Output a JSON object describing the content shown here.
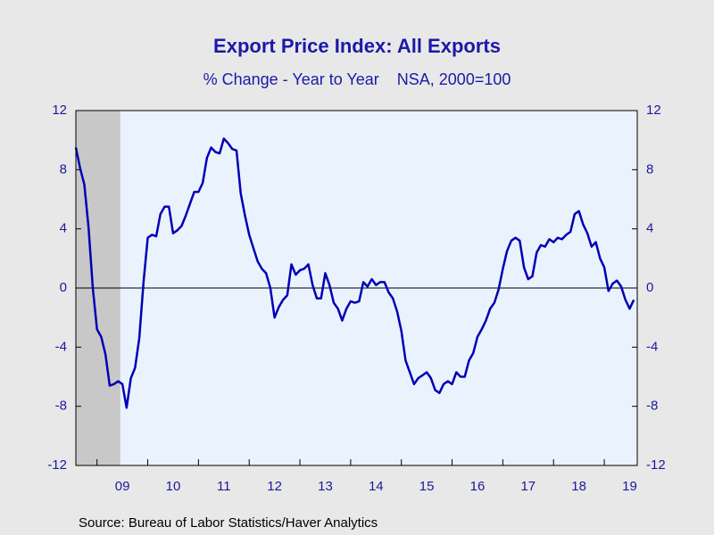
{
  "chart_data": {
    "type": "line",
    "title": "Export Price Index: All Exports",
    "subtitle": "% Change - Year to Year    NSA, 2000=100",
    "source": "Source:  Bureau of Labor Statistics/Haver Analytics",
    "x": [
      2008.583,
      2008.667,
      2008.75,
      2008.833,
      2008.917,
      2009,
      2009.083,
      2009.167,
      2009.25,
      2009.333,
      2009.417,
      2009.5,
      2009.583,
      2009.667,
      2009.75,
      2009.833,
      2009.917,
      2010,
      2010.083,
      2010.167,
      2010.25,
      2010.333,
      2010.417,
      2010.5,
      2010.583,
      2010.667,
      2010.75,
      2010.833,
      2010.917,
      2011,
      2011.083,
      2011.167,
      2011.25,
      2011.333,
      2011.417,
      2011.5,
      2011.583,
      2011.667,
      2011.75,
      2011.833,
      2011.917,
      2012,
      2012.083,
      2012.167,
      2012.25,
      2012.333,
      2012.417,
      2012.5,
      2012.583,
      2012.667,
      2012.75,
      2012.833,
      2012.917,
      2013,
      2013.083,
      2013.167,
      2013.25,
      2013.333,
      2013.417,
      2013.5,
      2013.583,
      2013.667,
      2013.75,
      2013.833,
      2013.917,
      2014,
      2014.083,
      2014.167,
      2014.25,
      2014.333,
      2014.417,
      2014.5,
      2014.583,
      2014.667,
      2014.75,
      2014.833,
      2014.917,
      2015,
      2015.083,
      2015.167,
      2015.25,
      2015.333,
      2015.417,
      2015.5,
      2015.583,
      2015.667,
      2015.75,
      2015.833,
      2015.917,
      2016,
      2016.083,
      2016.167,
      2016.25,
      2016.333,
      2016.417,
      2016.5,
      2016.583,
      2016.667,
      2016.75,
      2016.833,
      2016.917,
      2017,
      2017.083,
      2017.167,
      2017.25,
      2017.333,
      2017.417,
      2017.5,
      2017.583,
      2017.667,
      2017.75,
      2017.833,
      2017.917,
      2018,
      2018.083,
      2018.167,
      2018.25,
      2018.333,
      2018.417,
      2018.5,
      2018.583,
      2018.667,
      2018.75,
      2018.833,
      2018.917,
      2019,
      2019.083,
      2019.167,
      2019.25,
      2019.333,
      2019.417,
      2019.5,
      2019.583
    ],
    "series": [
      {
        "color": "#0000b4",
        "values": [
          9.5,
          8.1,
          7.0,
          4.1,
          0,
          -2.8,
          -3.3,
          -4.5,
          -6.6,
          -6.5,
          -6.3,
          -6.5,
          -8.1,
          -6.1,
          -5.4,
          -3.4,
          0.4,
          3.4,
          3.6,
          3.5,
          5.0,
          5.5,
          5.5,
          3.7,
          3.9,
          4.2,
          4.9,
          5.7,
          6.5,
          6.5,
          7.1,
          8.8,
          9.5,
          9.2,
          9.1,
          10.1,
          9.8,
          9.4,
          9.3,
          6.4,
          4.9,
          3.6,
          2.7,
          1.8,
          1.3,
          1.0,
          0,
          -2.0,
          -1.3,
          -0.8,
          -0.5,
          1.6,
          0.9,
          1.2,
          1.3,
          1.6,
          0.2,
          -0.7,
          -0.7,
          1.0,
          0.2,
          -1.0,
          -1.4,
          -2.2,
          -1.4,
          -0.9,
          -1.0,
          -0.9,
          0.4,
          0.1,
          0.6,
          0.2,
          0.4,
          0.4,
          -0.3,
          -0.7,
          -1.6,
          -2.9,
          -4.9,
          -5.7,
          -6.5,
          -6.1,
          -5.9,
          -5.7,
          -6.1,
          -6.9,
          -7.1,
          -6.5,
          -6.3,
          -6.5,
          -5.7,
          -6.0,
          -6.0,
          -4.9,
          -4.4,
          -3.3,
          -2.8,
          -2.2,
          -1.4,
          -1.0,
          -0.1,
          1.3,
          2.5,
          3.2,
          3.4,
          3.2,
          1.4,
          0.6,
          0.8,
          2.4,
          2.9,
          2.8,
          3.3,
          3.1,
          3.4,
          3.3,
          3.6,
          3.8,
          5.0,
          5.2,
          4.3,
          3.7,
          2.8,
          3.1,
          2.0,
          1.4,
          -0.2,
          0.3,
          0.5,
          0.1,
          -0.8,
          -1.4,
          -0.8
        ]
      }
    ],
    "recession": [
      2008.583,
      2009.46
    ],
    "xlim": [
      2008.583,
      2019.65
    ],
    "xticks": [
      {
        "value": 2009.5,
        "label": "09"
      },
      {
        "value": 2010.5,
        "label": "10"
      },
      {
        "value": 2011.5,
        "label": "11"
      },
      {
        "value": 2012.5,
        "label": "12"
      },
      {
        "value": 2013.5,
        "label": "13"
      },
      {
        "value": 2014.5,
        "label": "14"
      },
      {
        "value": 2015.5,
        "label": "15"
      },
      {
        "value": 2016.5,
        "label": "16"
      },
      {
        "value": 2017.5,
        "label": "17"
      },
      {
        "value": 2018.5,
        "label": "18"
      },
      {
        "value": 2019.5,
        "label": "19"
      }
    ],
    "ylim": [
      -12,
      12
    ],
    "yticks": [
      12,
      8,
      4,
      0,
      -4,
      -8,
      -12
    ],
    "y2lim": [
      -12,
      12
    ],
    "y2ticks": [
      12,
      8,
      4,
      0,
      -4,
      -8,
      -12
    ]
  }
}
